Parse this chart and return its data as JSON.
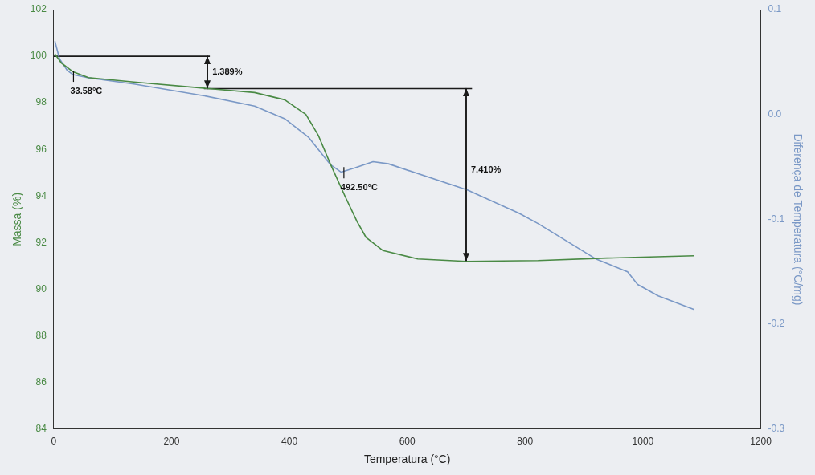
{
  "chart_data": {
    "type": "line",
    "xlabel": "Temperatura (°C)",
    "ylabel": "Massa (%)",
    "y2label": "Diferença de Temperatura (°C/mg)",
    "xlim": [
      0,
      1200
    ],
    "xticks": [
      0,
      200,
      400,
      600,
      800,
      1000,
      1200
    ],
    "ylim": [
      84,
      102
    ],
    "yticks": [
      84,
      86,
      88,
      90,
      92,
      94,
      96,
      98,
      100,
      102
    ],
    "y2lim": [
      -0.3,
      0.1
    ],
    "y2ticks": [
      -0.3,
      -0.2,
      -0.1,
      {
        "value": 0,
        "label": "0.0"
      },
      0.1
    ],
    "grid": false,
    "legend": false,
    "marker": "none",
    "line_style": "solid",
    "series": [
      {
        "color": "#4a8a45",
        "x": [
          2,
          13,
          33,
          59,
          136,
          254,
          341,
          392,
          428,
          449,
          470,
          495,
          515,
          530,
          559,
          618,
          700,
          822,
          939,
          1087
        ],
        "values": [
          100.1,
          99.71,
          99.33,
          99.08,
          98.89,
          98.63,
          98.44,
          98.13,
          97.5,
          96.61,
          95.35,
          93.96,
          92.9,
          92.23,
          91.66,
          91.3,
          91.2,
          91.23,
          91.34,
          91.44
        ]
      },
      {
        "color": "#7a98c6",
        "axis": "y2",
        "x": [
          2,
          10,
          23,
          33,
          59,
          136,
          254,
          341,
          392,
          433,
          470,
          488,
          511,
          542,
          568,
          702,
          789,
          822,
          921,
          974,
          991,
          1026,
          1087
        ],
        "values": [
          0.07,
          0.053,
          0.042,
          0.038,
          0.035,
          0.029,
          0.018,
          0.008,
          -0.004,
          -0.022,
          -0.048,
          -0.055,
          -0.051,
          -0.045,
          -0.047,
          -0.072,
          -0.094,
          -0.104,
          -0.138,
          -0.15,
          -0.162,
          -0.173,
          -0.186
        ]
      },
      {
        "color": "#1a1a1a",
        "x": [
          0,
          265
        ],
        "values": [
          100,
          100
        ]
      },
      {
        "color": "#1a1a1a",
        "x": [
          255,
          710
        ],
        "values": [
          98.61,
          98.61
        ]
      },
      {
        "color": "#1a1a1a",
        "x": [
          261,
          261
        ],
        "values": [
          100,
          98.61
        ]
      },
      {
        "color": "#1a1a1a",
        "x": [
          700,
          700
        ],
        "values": [
          98.61,
          91.2
        ]
      }
    ],
    "annotations": [
      {
        "text": "33.58°C",
        "x": 33.58,
        "y": 99.14
      },
      {
        "text": "492.50°C",
        "x": 492.5,
        "y": 95.0
      },
      {
        "text": "1.389%",
        "x": 261,
        "y": 99.3
      },
      {
        "text": "7.410%",
        "x": 700,
        "y": 95.1
      }
    ]
  }
}
